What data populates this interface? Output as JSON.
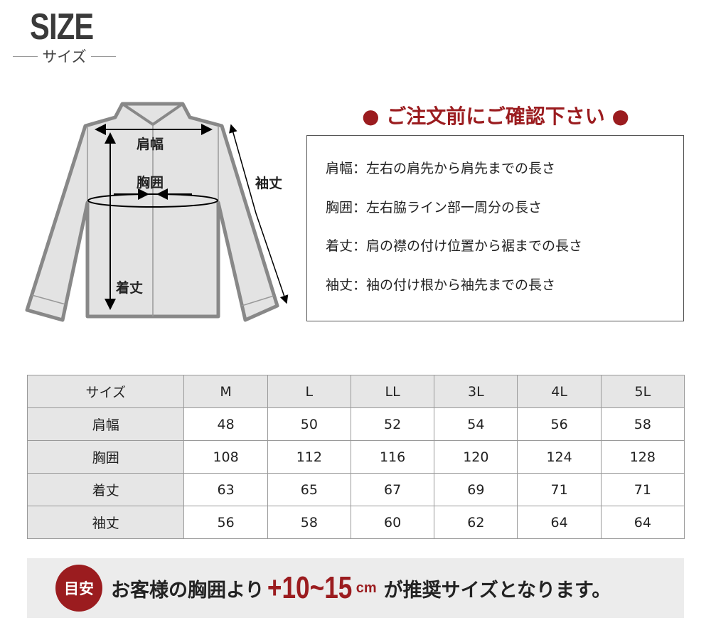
{
  "header": {
    "title": "SIZE",
    "subtitle": "サイズ"
  },
  "diagram": {
    "shoulder": "肩幅",
    "chest": "胸囲",
    "length": "着丈",
    "sleeve": "袖丈"
  },
  "notice": {
    "heading": "● ご注文前にご確認下さい ●",
    "notes": [
      "肩幅：左右の肩先から肩先までの長さ",
      "胸囲：左右脇ライン部一周分の長さ",
      "着丈：肩の襟の付け位置から裾までの長さ",
      "袖丈：袖の付け根から袖先までの長さ"
    ]
  },
  "table": {
    "header": [
      "サイズ",
      "M",
      "L",
      "LL",
      "3L",
      "4L",
      "5L"
    ],
    "rows": [
      [
        "肩幅",
        "48",
        "50",
        "52",
        "54",
        "56",
        "58"
      ],
      [
        "胸囲",
        "108",
        "112",
        "116",
        "120",
        "124",
        "128"
      ],
      [
        "着丈",
        "63",
        "65",
        "67",
        "69",
        "71",
        "71"
      ],
      [
        "袖丈",
        "56",
        "58",
        "60",
        "62",
        "64",
        "64"
      ]
    ]
  },
  "banner": {
    "badge": "目安",
    "text1": "お客様の胸囲より",
    "highlight": "+10~15",
    "unit": "cm",
    "text2": "が推奨サイズとなります。"
  },
  "colors": {
    "accent": "#9b1c1f",
    "shirt_fill": "#e3e3e3",
    "shirt_stroke": "#888888"
  }
}
